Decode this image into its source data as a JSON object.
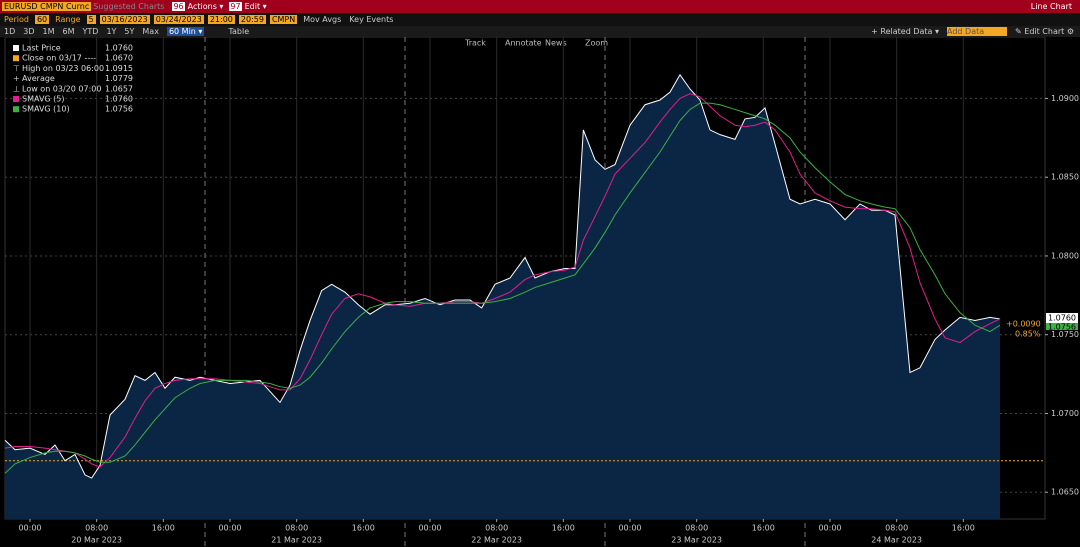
{
  "toolbar": {
    "security": "EURUSD CMPN Curnc",
    "suggested": "Suggested Charts",
    "actions_num": "96",
    "actions": "Actions ▾",
    "edit_num": "97",
    "edit": "Edit ▾",
    "view": "Line Chart"
  },
  "settings": {
    "period_label": "Period",
    "period": "60",
    "range_label": "Range",
    "range": "5",
    "start_date": "03/16/2023",
    "end_date": "03/24/2023",
    "start_time": "21:00",
    "end_time": "20:59",
    "source": "CMPN",
    "mov_avgs": "Mov Avgs",
    "key_events": "Key Events"
  },
  "ranges": {
    "buttons": [
      "1D",
      "3D",
      "1M",
      "6M",
      "YTD",
      "1Y",
      "5Y",
      "Max"
    ],
    "interval": "60 Min ▾",
    "table": "Table",
    "related": "+ Related Data ▾",
    "add_data": "Add Data",
    "edit_chart": "✎ Edit Chart ⚙"
  },
  "tools": [
    "Track",
    "Annotate",
    "News",
    "Zoom"
  ],
  "chart_data": {
    "type": "line",
    "x": [
      -3,
      -1.8,
      0,
      1.8,
      3,
      4.2,
      5.4,
      6.6,
      7.4,
      8.4,
      9.6,
      11.4,
      12.6,
      13.8,
      15,
      16.2,
      17.4,
      19.2,
      20.4,
      22.2,
      24,
      25.8,
      27.6,
      28.8,
      30,
      31.2,
      32.4,
      33.6,
      35,
      36.2,
      37.8,
      39.4,
      40.8,
      42.6,
      43.8,
      45.6,
      47.4,
      49.2,
      51,
      52.8,
      54.2,
      55.8,
      57.6,
      59.4,
      60.6,
      62.4,
      64.2,
      65.4,
      66.4,
      67.8,
      69,
      70.2,
      72,
      73.8,
      75.6,
      76.8,
      78,
      79.2,
      80.4,
      81.6,
      82.8,
      84.6,
      85.8,
      87,
      88.2,
      89.4,
      91.2,
      92.4,
      94.2,
      96,
      97.8,
      99.6,
      101,
      102.6,
      103.8,
      105.6,
      106.8,
      108.6,
      109.8,
      111.6,
      113.4,
      115.2,
      116.4
    ],
    "series": [
      {
        "name": "Last Price",
        "color": "#ffffff",
        "fill": "#0b2545",
        "values": [
          1.0683,
          1.0677,
          1.0678,
          1.0674,
          1.068,
          1.067,
          1.0674,
          1.0661,
          1.0659,
          1.0667,
          1.0699,
          1.0709,
          1.0724,
          1.0721,
          1.0726,
          1.0716,
          1.0723,
          1.0721,
          1.0723,
          1.0721,
          1.0719,
          1.072,
          1.0721,
          1.0714,
          1.0707,
          1.0718,
          1.074,
          1.0759,
          1.0778,
          1.0782,
          1.0777,
          1.0769,
          1.0763,
          1.0769,
          1.0769,
          1.077,
          1.0773,
          1.0769,
          1.0772,
          1.0772,
          1.0767,
          1.0782,
          1.0786,
          1.0799,
          1.0786,
          1.079,
          1.0792,
          1.0792,
          1.088,
          1.0861,
          1.0855,
          1.0858,
          1.0883,
          1.0896,
          1.0899,
          1.0904,
          1.0915,
          1.0906,
          1.0899,
          1.088,
          1.0877,
          1.0874,
          1.0887,
          1.0888,
          1.0894,
          1.0871,
          1.0836,
          1.0833,
          1.0836,
          1.0833,
          1.0823,
          1.0833,
          1.0829,
          1.0829,
          1.0826,
          1.0726,
          1.0729,
          1.0747,
          1.0753,
          1.0761,
          1.0759,
          1.0761,
          1.076
        ]
      },
      {
        "name": "SMAVG (5)",
        "color": "#e0208c",
        "values": [
          1.0678,
          1.0679,
          1.0679,
          1.0678,
          1.0677,
          1.0676,
          1.0675,
          1.0671,
          1.0668,
          1.0666,
          1.0672,
          1.0685,
          1.0697,
          1.0708,
          1.0716,
          1.0719,
          1.0721,
          1.0722,
          1.0722,
          1.0722,
          1.0721,
          1.072,
          1.0719,
          1.0717,
          1.0715,
          1.0715,
          1.0722,
          1.0734,
          1.075,
          1.0763,
          1.0773,
          1.0776,
          1.0774,
          1.077,
          1.0769,
          1.0768,
          1.077,
          1.077,
          1.0771,
          1.0771,
          1.077,
          1.0773,
          1.0777,
          1.0785,
          1.0788,
          1.079,
          1.0791,
          1.0793,
          1.081,
          1.0825,
          1.0838,
          1.0852,
          1.0862,
          1.0872,
          1.0885,
          1.0893,
          1.09,
          1.0903,
          1.0901,
          1.0895,
          1.0889,
          1.0883,
          1.0882,
          1.0883,
          1.0885,
          1.088,
          1.0866,
          1.0852,
          1.084,
          1.0835,
          1.0831,
          1.083,
          1.083,
          1.0829,
          1.0828,
          1.0805,
          1.0783,
          1.076,
          1.0748,
          1.0745,
          1.0752,
          1.0757,
          1.076
        ]
      },
      {
        "name": "SMAVG (10)",
        "color": "#3cb043",
        "values": [
          1.0662,
          1.0668,
          1.0672,
          1.0675,
          1.0676,
          1.0676,
          1.0675,
          1.0673,
          1.0671,
          1.0669,
          1.0669,
          1.0673,
          1.068,
          1.0688,
          1.0696,
          1.0703,
          1.071,
          1.0716,
          1.0719,
          1.0721,
          1.0721,
          1.0721,
          1.072,
          1.0719,
          1.0717,
          1.0716,
          1.0718,
          1.0723,
          1.0732,
          1.0741,
          1.0752,
          1.0761,
          1.0767,
          1.077,
          1.0771,
          1.0771,
          1.077,
          1.077,
          1.077,
          1.077,
          1.077,
          1.0771,
          1.0773,
          1.0777,
          1.078,
          1.0783,
          1.0786,
          1.0788,
          1.0795,
          1.0805,
          1.0815,
          1.0826,
          1.084,
          1.0853,
          1.0866,
          1.0876,
          1.0886,
          1.0893,
          1.0897,
          1.0897,
          1.0896,
          1.0893,
          1.0891,
          1.0889,
          1.0887,
          1.0883,
          1.0875,
          1.0866,
          1.0856,
          1.0847,
          1.0839,
          1.0835,
          1.0833,
          1.0831,
          1.083,
          1.0818,
          1.0804,
          1.0788,
          1.0776,
          1.0764,
          1.0756,
          1.0752,
          1.0756
        ]
      }
    ],
    "legend_values": [
      "1.0760",
      "1.0760",
      "1.0756"
    ],
    "stats": [
      {
        "name": "Close on 03/17 ----",
        "value": "1.0670",
        "color": "#f5a623"
      },
      {
        "name": "High on 03/23 06:00",
        "value": "1.0915",
        "icon": "⊤"
      },
      {
        "name": "Average",
        "value": "1.0779",
        "icon": "+"
      },
      {
        "name": "Low on 03/20 07:00",
        "value": "1.0657",
        "icon": "⊥"
      }
    ],
    "reference_line": 1.067,
    "reference_color": "#f5a623",
    "session_breaks": [
      21,
      45,
      69,
      93
    ],
    "xlim": [
      -3,
      121.8
    ],
    "xticks": [
      {
        "value": 0,
        "label": "00:00"
      },
      {
        "value": 8,
        "label": "08:00"
      },
      {
        "value": 16,
        "label": "16:00"
      },
      {
        "value": 24,
        "label": "00:00"
      },
      {
        "value": 32,
        "label": "08:00"
      },
      {
        "value": 40,
        "label": "16:00"
      },
      {
        "value": 48,
        "label": "00:00"
      },
      {
        "value": 56,
        "label": "08:00"
      },
      {
        "value": 64,
        "label": "16:00"
      },
      {
        "value": 72,
        "label": "00:00"
      },
      {
        "value": 80,
        "label": "08:00"
      },
      {
        "value": 88,
        "label": "16:00"
      },
      {
        "value": 96,
        "label": "00:00"
      },
      {
        "value": 104,
        "label": "08:00"
      },
      {
        "value": 112,
        "label": "16:00"
      }
    ],
    "date_labels": [
      {
        "value": 8,
        "label": "20 Mar 2023"
      },
      {
        "value": 32,
        "label": "21 Mar 2023"
      },
      {
        "value": 56,
        "label": "22 Mar 2023"
      },
      {
        "value": 80,
        "label": "23 Mar 2023"
      },
      {
        "value": 104,
        "label": "24 Mar 2023"
      }
    ],
    "ylim": [
      1.0633,
      1.0939
    ],
    "yticks": [
      {
        "value": 1.065,
        "label": "1.0650"
      },
      {
        "value": 1.07,
        "label": "1.0700"
      },
      {
        "value": 1.075,
        "label": "1.0750"
      },
      {
        "value": 1.08,
        "label": "1.0800"
      },
      {
        "value": 1.085,
        "label": "1.0850"
      },
      {
        "value": 1.09,
        "label": "1.0900"
      }
    ],
    "right_labels": {
      "last": "1.0760",
      "change": "+0.0090",
      "pct": "0.85%",
      "sma10": "1.0756"
    },
    "grid": true
  }
}
